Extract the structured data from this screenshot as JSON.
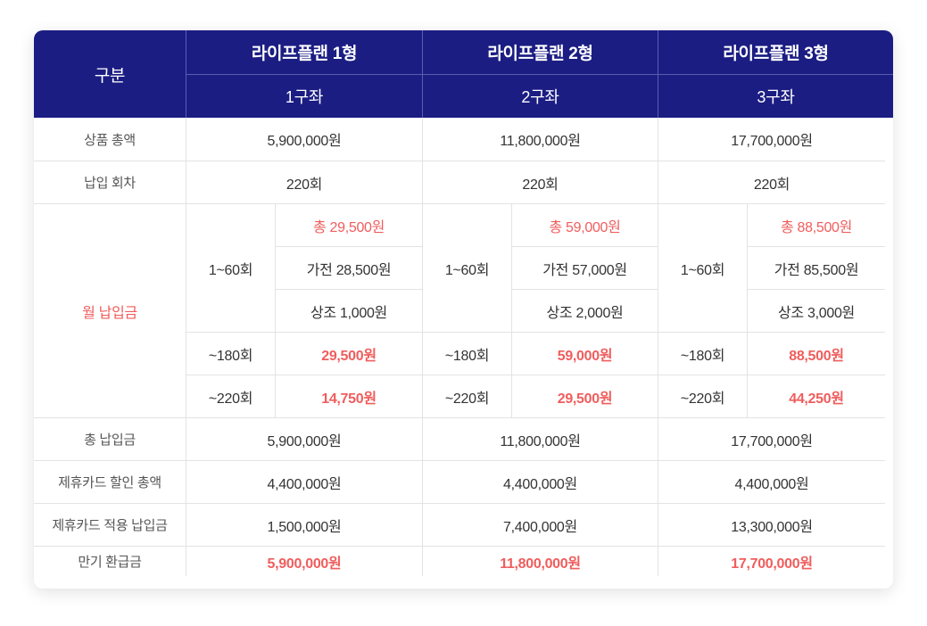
{
  "header": {
    "category": "구분",
    "plans": [
      "라이프플랜 1형",
      "라이프플랜 2형",
      "라이프플랜 3형"
    ],
    "accounts": [
      "1구좌",
      "2구좌",
      "3구좌"
    ]
  },
  "rows": {
    "total_amount": {
      "label": "상품 총액",
      "values": [
        "5,900,000원",
        "11,800,000원",
        "17,700,000원"
      ]
    },
    "payment_count": {
      "label": "납입 회차",
      "values": [
        "220회",
        "220회",
        "220회"
      ]
    },
    "monthly": {
      "label": "월 납입금",
      "plans": [
        {
          "range1": "1~60회",
          "total": "총 29,500원",
          "appliance": "가전 28,500원",
          "mutual": "상조 1,000원",
          "range2": "~180회",
          "v2": "29,500원",
          "range3": "~220회",
          "v3": "14,750원"
        },
        {
          "range1": "1~60회",
          "total": "총 59,000원",
          "appliance": "가전 57,000원",
          "mutual": "상조 2,000원",
          "range2": "~180회",
          "v2": "59,000원",
          "range3": "~220회",
          "v3": "29,500원"
        },
        {
          "range1": "1~60회",
          "total": "총 88,500원",
          "appliance": "가전 85,500원",
          "mutual": "상조 3,000원",
          "range2": "~180회",
          "v2": "88,500원",
          "range3": "~220회",
          "v3": "44,250원"
        }
      ]
    },
    "total_paid": {
      "label": "총 납입금",
      "values": [
        "5,900,000원",
        "11,800,000원",
        "17,700,000원"
      ]
    },
    "card_discount": {
      "label": "제휴카드 할인 총액",
      "values": [
        "4,400,000원",
        "4,400,000원",
        "4,400,000원"
      ]
    },
    "card_paid": {
      "label": "제휴카드 적용 납입금",
      "values": [
        "1,500,000원",
        "7,400,000원",
        "13,300,000원"
      ]
    },
    "refund": {
      "label": "만기 환급금",
      "values": [
        "5,900,000원",
        "11,800,000원",
        "17,700,000원"
      ]
    }
  },
  "colors": {
    "header_bg": "#1b1d83",
    "highlight": "#f05d5d"
  }
}
